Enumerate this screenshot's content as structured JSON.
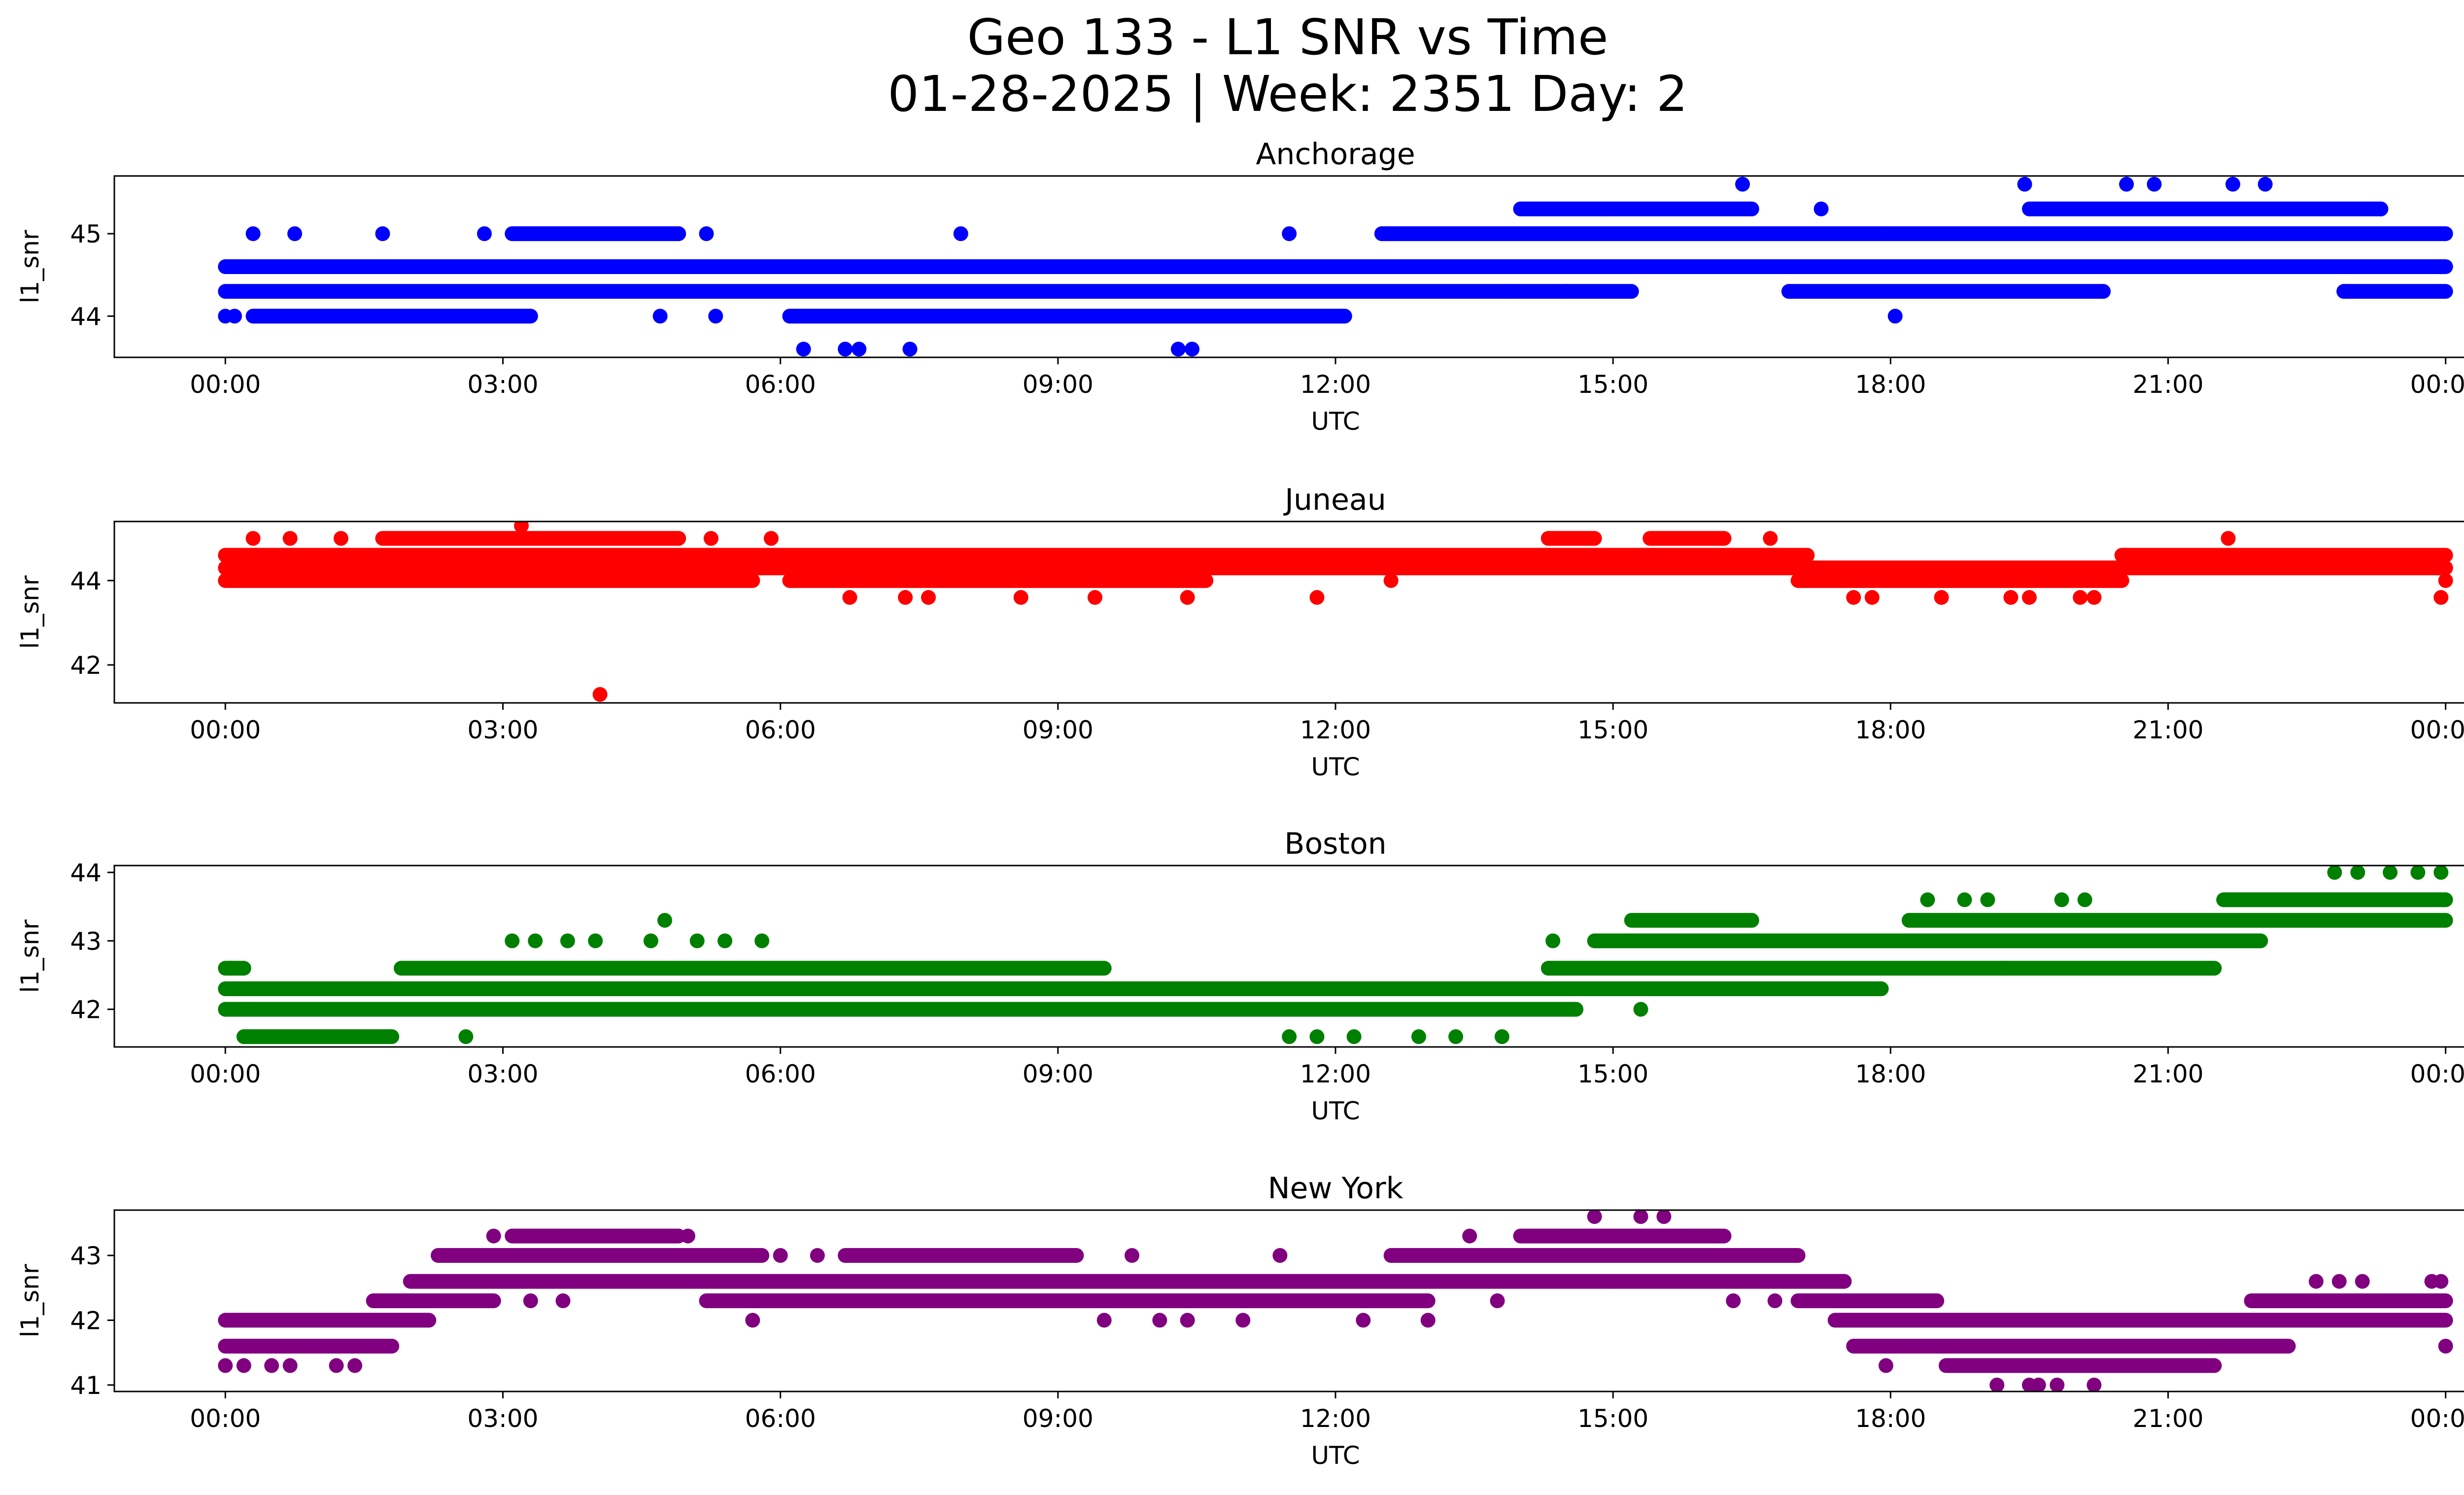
{
  "chart_data": {
    "type": "scatter",
    "title_line1": "Geo 133 - L1 SNR vs Time",
    "title_line2": "01-28-2025 | Week: 2351 Day: 2",
    "xlabel": "UTC",
    "ylabel": "l1_snr",
    "xticks": [
      "00:00",
      "03:00",
      "06:00",
      "09:00",
      "12:00",
      "15:00",
      "18:00",
      "21:00",
      "00:00"
    ],
    "xlim_hours": [
      -1.2,
      25.2
    ],
    "panels": [
      {
        "name": "Anchorage",
        "color": "#0000ff",
        "ylim": [
          43.5,
          45.7
        ],
        "yticks": [
          44,
          45
        ],
        "segments": [
          {
            "y": 44.6,
            "from": 0,
            "to": 24
          },
          {
            "y": 44.3,
            "from": 0,
            "to": 15.2
          },
          {
            "y": 44.3,
            "from": 16.9,
            "to": 20.3
          },
          {
            "y": 44.3,
            "from": 22.9,
            "to": 24
          },
          {
            "y": 44.0,
            "from": 0.3,
            "to": 3.3
          },
          {
            "y": 44.0,
            "from": 6.1,
            "to": 12.1
          },
          {
            "y": 45.0,
            "from": 3.1,
            "to": 4.9
          },
          {
            "y": 45.0,
            "from": 12.5,
            "to": 17.9
          },
          {
            "y": 45.0,
            "from": 17.9,
            "to": 24
          },
          {
            "y": 45.3,
            "from": 14.0,
            "to": 16.5
          },
          {
            "y": 45.3,
            "from": 19.5,
            "to": 23.3
          }
        ],
        "points": [
          {
            "x": 0.0,
            "y": 44.0
          },
          {
            "x": 0.1,
            "y": 44.0
          },
          {
            "x": 0.3,
            "y": 45.0
          },
          {
            "x": 0.75,
            "y": 45.0
          },
          {
            "x": 1.7,
            "y": 45.0
          },
          {
            "x": 2.8,
            "y": 45.0
          },
          {
            "x": 5.2,
            "y": 45.0
          },
          {
            "x": 7.95,
            "y": 45.0
          },
          {
            "x": 11.5,
            "y": 45.0
          },
          {
            "x": 4.7,
            "y": 44.0
          },
          {
            "x": 5.3,
            "y": 44.0
          },
          {
            "x": 6.25,
            "y": 43.6
          },
          {
            "x": 6.7,
            "y": 43.6
          },
          {
            "x": 6.85,
            "y": 43.6
          },
          {
            "x": 7.4,
            "y": 43.6
          },
          {
            "x": 10.3,
            "y": 43.6
          },
          {
            "x": 10.45,
            "y": 43.6
          },
          {
            "x": 16.4,
            "y": 45.6
          },
          {
            "x": 17.25,
            "y": 45.3
          },
          {
            "x": 18.05,
            "y": 44.0
          },
          {
            "x": 19.45,
            "y": 45.6
          },
          {
            "x": 20.55,
            "y": 45.6
          },
          {
            "x": 20.85,
            "y": 45.6
          },
          {
            "x": 21.7,
            "y": 45.6
          },
          {
            "x": 22.05,
            "y": 45.6
          },
          {
            "x": 22.9,
            "y": 44.3
          },
          {
            "x": 23.3,
            "y": 45.3
          },
          {
            "x": 14.5,
            "y": 44.3
          },
          {
            "x": 14.9,
            "y": 45.3
          },
          {
            "x": 13.9,
            "y": 44.3
          }
        ]
      },
      {
        "name": "Juneau",
        "color": "#ff0000",
        "ylim": [
          41.1,
          45.4
        ],
        "yticks": [
          42,
          44
        ],
        "segments": [
          {
            "y": 44.6,
            "from": 0,
            "to": 17.1
          },
          {
            "y": 44.6,
            "from": 20.5,
            "to": 24
          },
          {
            "y": 44.3,
            "from": 0,
            "to": 24
          },
          {
            "y": 44.0,
            "from": 0,
            "to": 5.7
          },
          {
            "y": 44.0,
            "from": 6.1,
            "to": 10.6
          },
          {
            "y": 44.0,
            "from": 17.0,
            "to": 20.5
          },
          {
            "y": 45.0,
            "from": 1.7,
            "to": 4.9
          },
          {
            "y": 45.0,
            "from": 14.3,
            "to": 14.8
          },
          {
            "y": 45.0,
            "from": 15.4,
            "to": 16.2
          }
        ],
        "points": [
          {
            "x": 3.2,
            "y": 45.3
          },
          {
            "x": 4.05,
            "y": 41.3
          },
          {
            "x": 0.3,
            "y": 45.0
          },
          {
            "x": 0.7,
            "y": 45.0
          },
          {
            "x": 1.25,
            "y": 45.0
          },
          {
            "x": 5.25,
            "y": 45.0
          },
          {
            "x": 5.9,
            "y": 45.0
          },
          {
            "x": 6.75,
            "y": 43.6
          },
          {
            "x": 7.35,
            "y": 43.6
          },
          {
            "x": 7.6,
            "y": 43.6
          },
          {
            "x": 8.6,
            "y": 43.6
          },
          {
            "x": 9.4,
            "y": 43.6
          },
          {
            "x": 10.4,
            "y": 43.6
          },
          {
            "x": 11.8,
            "y": 43.6
          },
          {
            "x": 12.6,
            "y": 44.0
          },
          {
            "x": 16.7,
            "y": 45.0
          },
          {
            "x": 17.6,
            "y": 43.6
          },
          {
            "x": 17.8,
            "y": 43.6
          },
          {
            "x": 18.55,
            "y": 43.6
          },
          {
            "x": 19.3,
            "y": 43.6
          },
          {
            "x": 19.5,
            "y": 43.6
          },
          {
            "x": 20.05,
            "y": 43.6
          },
          {
            "x": 20.2,
            "y": 43.6
          },
          {
            "x": 21.65,
            "y": 45.0
          },
          {
            "x": 23.95,
            "y": 43.6
          },
          {
            "x": 24.0,
            "y": 44.0
          },
          {
            "x": 2.7,
            "y": 44.0
          },
          {
            "x": 1.9,
            "y": 44.0
          }
        ]
      },
      {
        "name": "Boston",
        "color": "#008000",
        "ylim": [
          41.45,
          44.1
        ],
        "yticks": [
          42,
          43,
          44
        ],
        "segments": [
          {
            "y": 42.3,
            "from": 0,
            "to": 14.6
          },
          {
            "y": 42.3,
            "from": 14.6,
            "to": 17.9
          },
          {
            "y": 42.0,
            "from": 0,
            "to": 14.6
          },
          {
            "y": 42.6,
            "from": 0,
            "to": 0.2
          },
          {
            "y": 42.6,
            "from": 1.9,
            "to": 9.5
          },
          {
            "y": 42.6,
            "from": 14.3,
            "to": 21.5
          },
          {
            "y": 41.6,
            "from": 0.2,
            "to": 1.8
          },
          {
            "y": 43.0,
            "from": 14.8,
            "to": 22.0
          },
          {
            "y": 43.3,
            "from": 15.2,
            "to": 16.5
          },
          {
            "y": 43.3,
            "from": 18.2,
            "to": 24
          },
          {
            "y": 43.6,
            "from": 21.6,
            "to": 24
          }
        ],
        "points": [
          {
            "x": 2.6,
            "y": 41.6
          },
          {
            "x": 3.1,
            "y": 43.0
          },
          {
            "x": 3.35,
            "y": 43.0
          },
          {
            "x": 3.7,
            "y": 43.0
          },
          {
            "x": 4.0,
            "y": 43.0
          },
          {
            "x": 4.2,
            "y": 42.0
          },
          {
            "x": 4.6,
            "y": 43.0
          },
          {
            "x": 4.75,
            "y": 43.3
          },
          {
            "x": 5.1,
            "y": 43.0
          },
          {
            "x": 5.4,
            "y": 43.0
          },
          {
            "x": 5.8,
            "y": 43.0
          },
          {
            "x": 11.5,
            "y": 41.6
          },
          {
            "x": 11.8,
            "y": 41.6
          },
          {
            "x": 12.2,
            "y": 41.6
          },
          {
            "x": 12.9,
            "y": 41.6
          },
          {
            "x": 13.3,
            "y": 41.6
          },
          {
            "x": 13.8,
            "y": 41.6
          },
          {
            "x": 14.35,
            "y": 43.0
          },
          {
            "x": 15.3,
            "y": 42.0
          },
          {
            "x": 18.4,
            "y": 43.6
          },
          {
            "x": 18.8,
            "y": 43.6
          },
          {
            "x": 19.05,
            "y": 43.6
          },
          {
            "x": 19.2,
            "y": 42.6
          },
          {
            "x": 19.85,
            "y": 43.6
          },
          {
            "x": 20.1,
            "y": 43.6
          },
          {
            "x": 22.8,
            "y": 44.0
          },
          {
            "x": 23.05,
            "y": 44.0
          },
          {
            "x": 23.4,
            "y": 44.0
          },
          {
            "x": 23.7,
            "y": 44.0
          },
          {
            "x": 23.95,
            "y": 44.0
          },
          {
            "x": 0.05,
            "y": 42.6
          }
        ]
      },
      {
        "name": "New York",
        "color": "#800080",
        "ylim": [
          40.9,
          43.7
        ],
        "yticks": [
          41,
          42,
          43
        ],
        "segments": [
          {
            "y": 42.0,
            "from": 0,
            "to": 2.2
          },
          {
            "y": 42.0,
            "from": 17.4,
            "to": 24
          },
          {
            "y": 41.6,
            "from": 0,
            "to": 1.8
          },
          {
            "y": 41.6,
            "from": 17.6,
            "to": 22.3
          },
          {
            "y": 41.3,
            "from": 18.6,
            "to": 21.5
          },
          {
            "y": 42.3,
            "from": 1.6,
            "to": 2.9
          },
          {
            "y": 42.3,
            "from": 5.2,
            "to": 13.0
          },
          {
            "y": 42.3,
            "from": 17.0,
            "to": 18.5
          },
          {
            "y": 42.3,
            "from": 21.9,
            "to": 24
          },
          {
            "y": 42.6,
            "from": 2.0,
            "to": 17.5
          },
          {
            "y": 43.0,
            "from": 2.3,
            "to": 5.8
          },
          {
            "y": 43.0,
            "from": 6.7,
            "to": 9.2
          },
          {
            "y": 43.0,
            "from": 12.6,
            "to": 17.0
          },
          {
            "y": 43.3,
            "from": 3.1,
            "to": 4.9
          },
          {
            "y": 43.3,
            "from": 14.0,
            "to": 16.2
          }
        ],
        "points": [
          {
            "x": 0.0,
            "y": 41.3
          },
          {
            "x": 0.2,
            "y": 41.3
          },
          {
            "x": 0.5,
            "y": 41.3
          },
          {
            "x": 0.7,
            "y": 41.3
          },
          {
            "x": 1.2,
            "y": 41.3
          },
          {
            "x": 1.4,
            "y": 41.3
          },
          {
            "x": 2.9,
            "y": 43.3
          },
          {
            "x": 3.3,
            "y": 42.3
          },
          {
            "x": 3.65,
            "y": 42.3
          },
          {
            "x": 5.0,
            "y": 43.3
          },
          {
            "x": 5.3,
            "y": 43.0
          },
          {
            "x": 5.7,
            "y": 42.0
          },
          {
            "x": 6.0,
            "y": 43.0
          },
          {
            "x": 6.4,
            "y": 43.0
          },
          {
            "x": 9.5,
            "y": 42.0
          },
          {
            "x": 9.8,
            "y": 43.0
          },
          {
            "x": 10.1,
            "y": 42.0
          },
          {
            "x": 10.4,
            "y": 42.0
          },
          {
            "x": 11.0,
            "y": 42.0
          },
          {
            "x": 11.4,
            "y": 43.0
          },
          {
            "x": 12.3,
            "y": 42.0
          },
          {
            "x": 13.0,
            "y": 42.0
          },
          {
            "x": 13.45,
            "y": 43.3
          },
          {
            "x": 13.75,
            "y": 42.3
          },
          {
            "x": 14.8,
            "y": 43.6
          },
          {
            "x": 15.3,
            "y": 43.6
          },
          {
            "x": 15.55,
            "y": 43.6
          },
          {
            "x": 15.0,
            "y": 42.6
          },
          {
            "x": 16.3,
            "y": 42.3
          },
          {
            "x": 16.75,
            "y": 42.3
          },
          {
            "x": 17.95,
            "y": 41.3
          },
          {
            "x": 19.15,
            "y": 41.0
          },
          {
            "x": 19.5,
            "y": 41.0
          },
          {
            "x": 19.6,
            "y": 41.0
          },
          {
            "x": 19.8,
            "y": 41.0
          },
          {
            "x": 20.2,
            "y": 41.0
          },
          {
            "x": 22.6,
            "y": 42.6
          },
          {
            "x": 22.85,
            "y": 42.6
          },
          {
            "x": 23.1,
            "y": 42.6
          },
          {
            "x": 23.85,
            "y": 42.6
          },
          {
            "x": 23.95,
            "y": 42.6
          },
          {
            "x": 24.0,
            "y": 41.6
          }
        ]
      }
    ]
  }
}
